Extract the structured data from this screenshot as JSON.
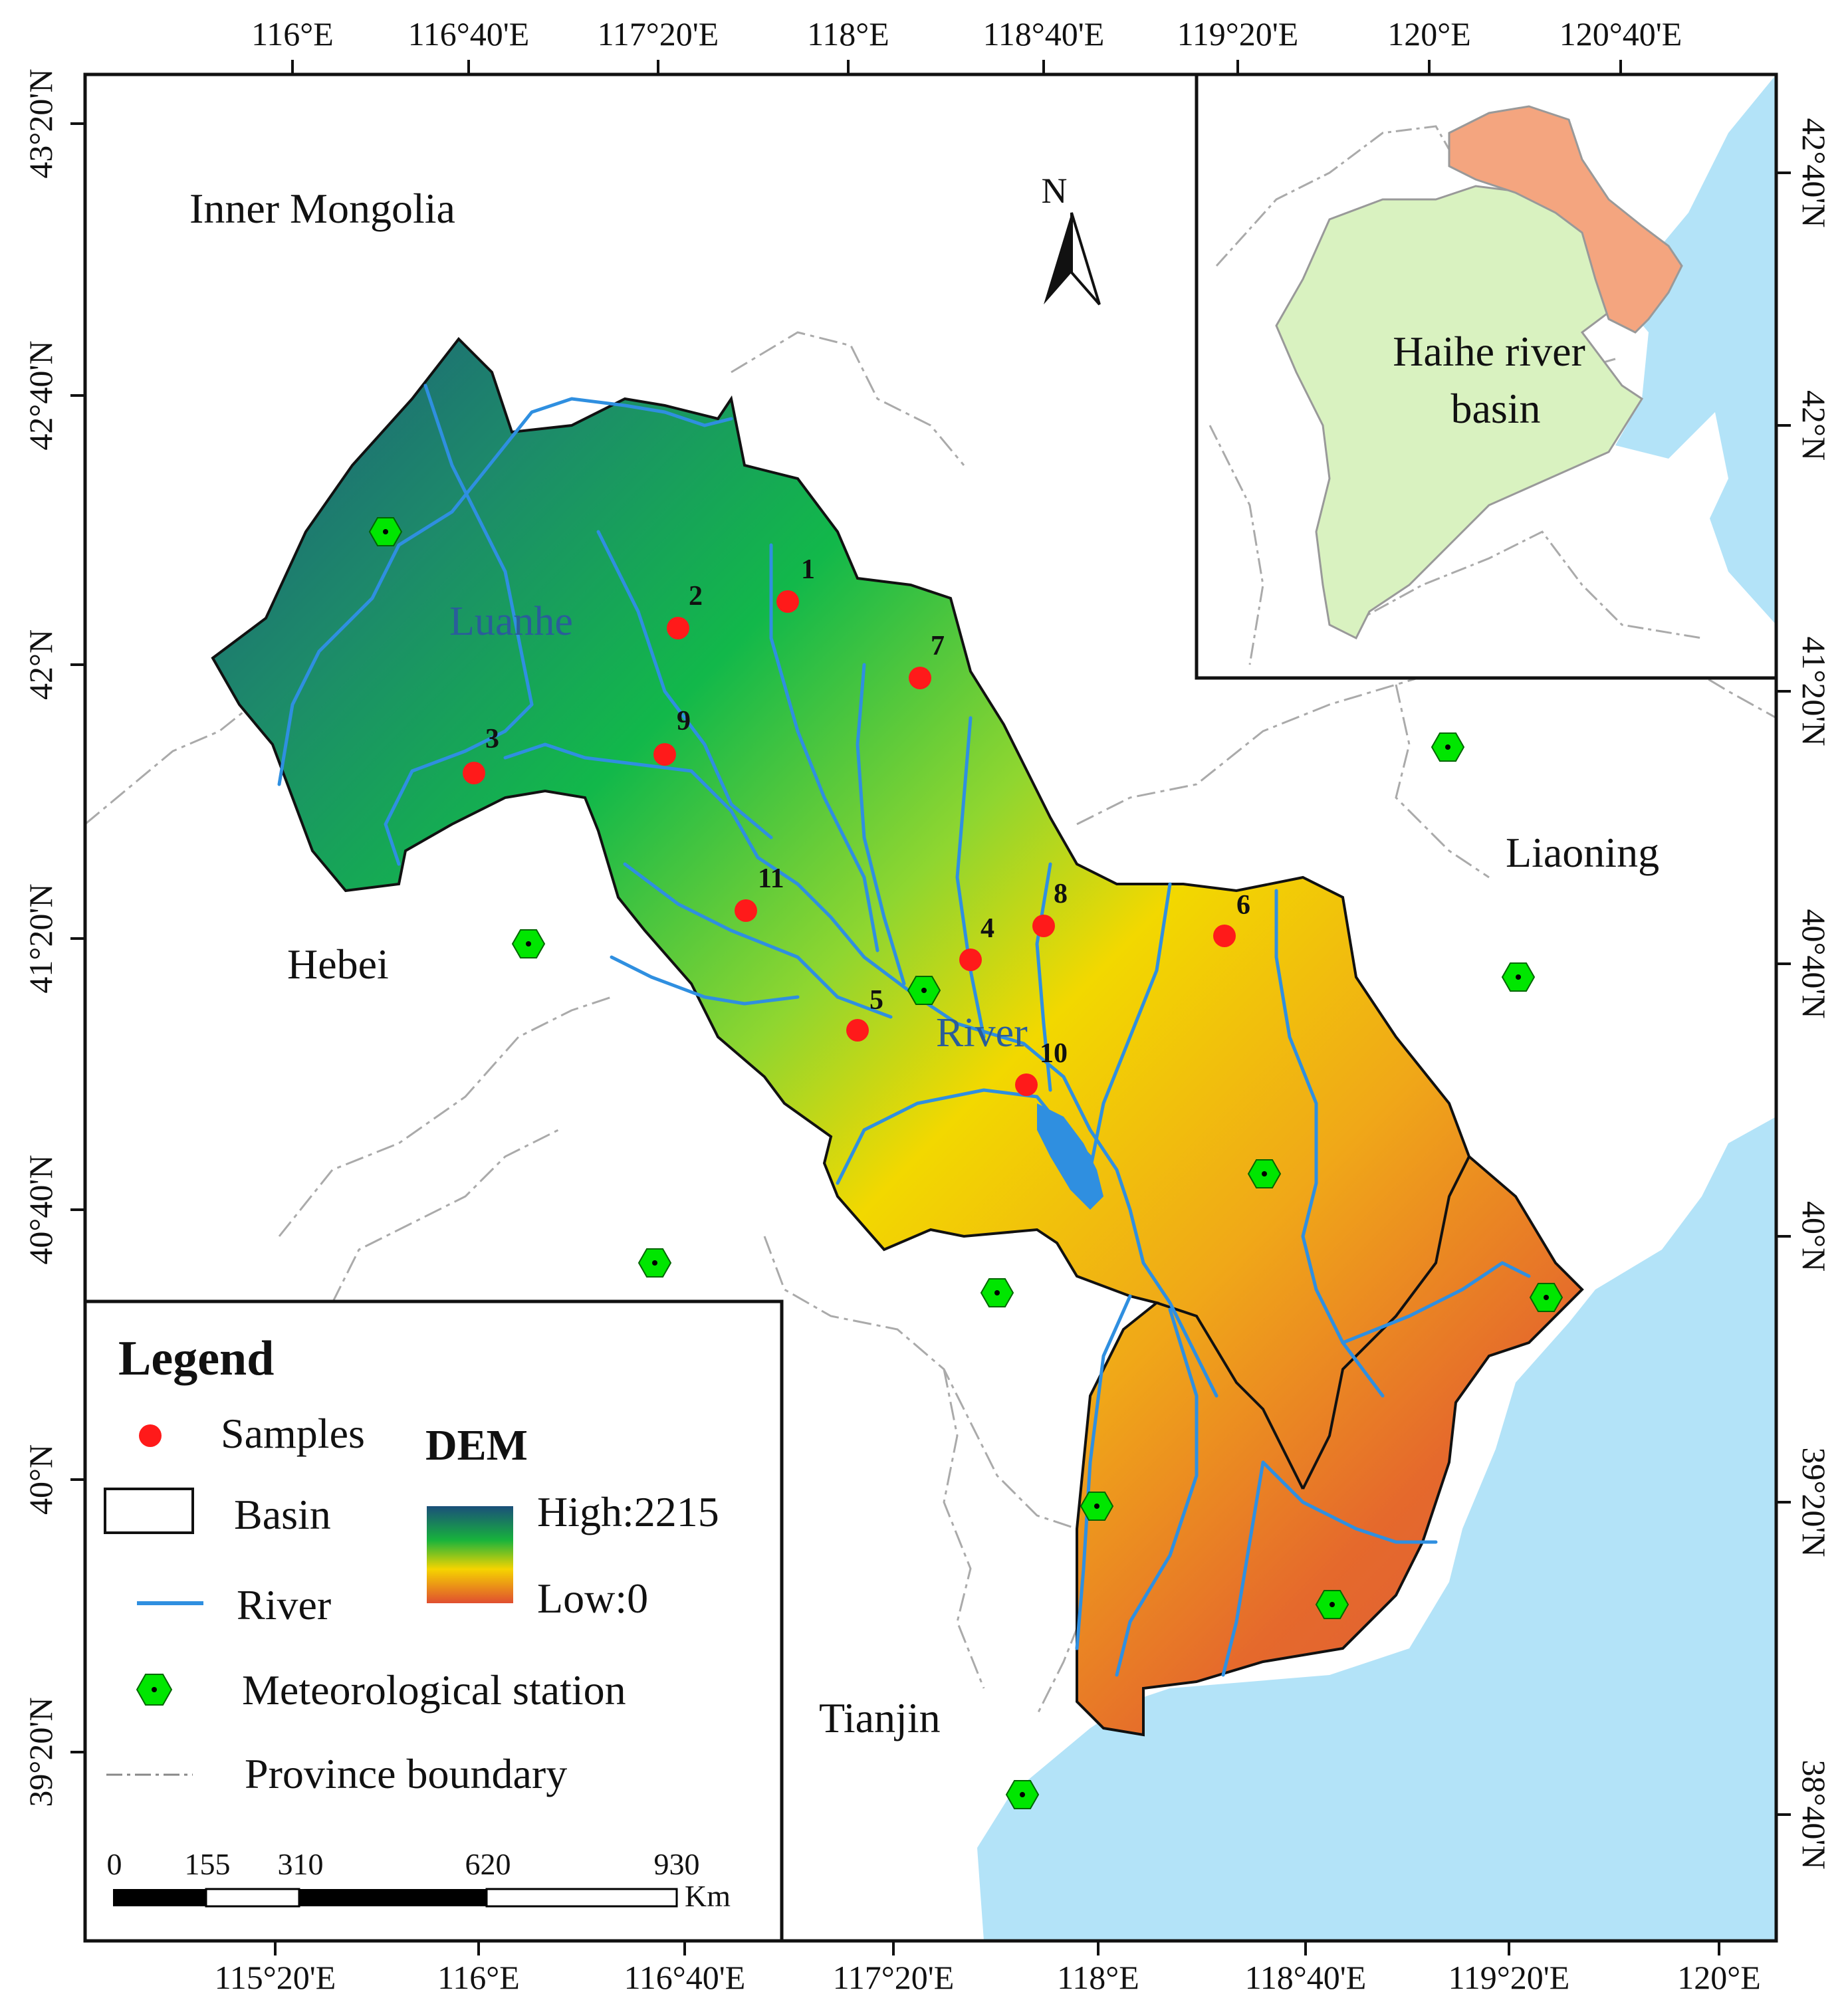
{
  "ticks": {
    "top": [
      "116°E",
      "116°40'E",
      "117°20'E",
      "118°E",
      "118°40'E",
      "119°20'E",
      "120°E",
      "120°40'E"
    ],
    "bottom": [
      "115°20'E",
      "116°E",
      "116°40'E",
      "117°20'E",
      "118°E",
      "118°40'E",
      "119°20'E",
      "120°E"
    ],
    "left": [
      "43°20'N",
      "42°40'N",
      "42°N",
      "41°20'N",
      "40°40'N",
      "40°N",
      "39°20'N"
    ],
    "right": [
      "42°40'N",
      "42°N",
      "41°20'N",
      "40°40'N",
      "40°N",
      "39°20'N",
      "38°40'N"
    ]
  },
  "regions": {
    "inner_mongolia": "Inner Mongolia",
    "hebei": "Hebei",
    "liaoning": "Liaoning",
    "tianjin": "Tianjin"
  },
  "river_label": {
    "part1": "Luanhe",
    "part2": "River"
  },
  "north": "N",
  "inset": {
    "label_line1": "Haihe river",
    "label_line2": "basin"
  },
  "samples": [
    "1",
    "2",
    "3",
    "4",
    "5",
    "6",
    "7",
    "8",
    "9",
    "10",
    "11"
  ],
  "legend": {
    "title": "Legend",
    "samples": "Samples",
    "basin": "Basin",
    "river": "River",
    "station": "Meteorological station",
    "province": "Province boundary",
    "dem_title": "DEM",
    "dem_high": "High:2215",
    "dem_low": "Low:0"
  },
  "scalebar": {
    "labels": [
      "0",
      "155",
      "310",
      "620",
      "930"
    ],
    "unit": "Km"
  },
  "colors": {
    "sea": "#b3e3f8",
    "sample": "#ff1a1a",
    "station": "#00e600",
    "river": "#2f8fe0",
    "inset_haihe": "#d9f2c0",
    "inset_luanhe": "#f4a57f",
    "dem_high": "#1a4f7a",
    "dem_mid": "#18b33c",
    "dem_yellow": "#f5d400",
    "dem_low": "#e04e30"
  }
}
